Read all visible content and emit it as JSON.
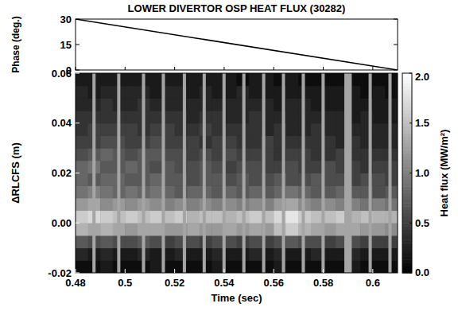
{
  "chart_data": [
    {
      "type": "line",
      "title": "LOWER DIVERTOR OSP HEAT FLUX (30282)",
      "y_label": "Phase (deg.)",
      "x": [
        0.48,
        0.61
      ],
      "values": [
        30,
        0
      ],
      "color": "#000000",
      "xlim": [
        0.48,
        0.61
      ],
      "xticks": [
        0.48,
        0.5,
        0.52,
        0.54,
        0.56,
        0.58,
        0.6
      ],
      "ylim": [
        0,
        30
      ],
      "yticks": [
        0,
        15,
        30
      ],
      "tick_labels": "y"
    },
    {
      "type": "heatmap",
      "x_label": "Time (sec)",
      "y_label": "ΔRLCFS (m)",
      "colorbar_label": "Heat flux (MW/m²)",
      "xlim": [
        0.48,
        0.61
      ],
      "xticks": [
        0.48,
        0.5,
        0.52,
        0.54,
        0.56,
        0.58,
        0.6
      ],
      "ylim": [
        -0.02,
        0.06
      ],
      "yticks": [
        {
          "value": -0.02,
          "label": "-0.02"
        },
        {
          "value": 0,
          "label": "0.00"
        },
        {
          "value": 0.02,
          "label": "0.02"
        },
        {
          "value": 0.04,
          "label": "0.04"
        },
        {
          "value": 0.06,
          "label": "0.06"
        }
      ],
      "colorbar_lim": [
        0,
        2
      ],
      "colorbar_ticks": [
        {
          "value": 0,
          "label": "0.0"
        },
        {
          "value": 0.5,
          "label": "0.5"
        },
        {
          "value": 1,
          "label": "1.0"
        },
        {
          "value": 1.5,
          "label": "1.5"
        },
        {
          "value": 2,
          "label": "2.0"
        }
      ],
      "x_edges": [
        0.48,
        0.485,
        0.49,
        0.495,
        0.5,
        0.505,
        0.51,
        0.515,
        0.52,
        0.525,
        0.53,
        0.535,
        0.54,
        0.545,
        0.55,
        0.555,
        0.56,
        0.565,
        0.57,
        0.575,
        0.58,
        0.585,
        0.59,
        0.595,
        0.6,
        0.605,
        0.61
      ],
      "y_edges": [
        -0.02,
        -0.015,
        -0.01,
        -0.005,
        0,
        0.005,
        0.01,
        0.015,
        0.02,
        0.025,
        0.03,
        0.035,
        0.04,
        0.045,
        0.05,
        0.055,
        0.06
      ],
      "cells": [
        [
          0.1,
          0.1,
          0.2,
          0.1,
          0.1,
          0.1,
          0.2,
          0.1,
          0.1,
          0.1,
          0.1,
          0.2,
          0.1,
          0.1,
          0.1,
          0.1,
          0.2,
          0.1,
          0.1,
          0.1,
          0.1,
          0.1,
          0.2,
          0.1,
          0.1,
          0.1
        ],
        [
          0.3,
          0.2,
          0.3,
          0.2,
          0.2,
          0.3,
          0.2,
          0.2,
          0.3,
          0.2,
          0.2,
          0.3,
          0.2,
          0.2,
          0.3,
          0.2,
          0.3,
          0.2,
          0.2,
          0.3,
          0.2,
          0.2,
          0.3,
          0.2,
          0.2,
          0.2
        ],
        [
          0.7,
          0.6,
          0.7,
          0.6,
          0.6,
          0.7,
          0.6,
          0.5,
          0.6,
          0.6,
          0.5,
          0.6,
          0.6,
          0.5,
          0.6,
          0.5,
          0.6,
          0.7,
          0.6,
          0.6,
          0.5,
          0.6,
          0.6,
          0.5,
          0.5,
          0.5
        ],
        [
          1.4,
          1.3,
          1.4,
          1.3,
          1.2,
          1.3,
          1.3,
          1.2,
          1.2,
          1.3,
          1.2,
          1.2,
          1.3,
          1.2,
          1.3,
          1.2,
          1.5,
          1.6,
          1.4,
          1.3,
          1.2,
          1.3,
          1.3,
          1.2,
          1.2,
          1.1
        ],
        [
          1.6,
          1.7,
          1.6,
          1.5,
          1.6,
          1.5,
          1.6,
          1.5,
          1.6,
          1.4,
          1.5,
          1.5,
          1.4,
          1.5,
          1.6,
          1.5,
          1.7,
          1.8,
          1.6,
          1.5,
          1.5,
          1.6,
          1.4,
          1.5,
          1.4,
          1.4
        ],
        [
          1.2,
          1.3,
          1.1,
          1.2,
          1.1,
          1.2,
          1.1,
          1.0,
          1.1,
          1.0,
          1.1,
          1.0,
          1.1,
          1.0,
          1.1,
          1.0,
          1.2,
          1.3,
          1.1,
          1.0,
          1.1,
          1.0,
          1.0,
          0.9,
          1.0,
          0.9
        ],
        [
          0.9,
          1.0,
          0.9,
          0.8,
          0.9,
          0.8,
          0.9,
          0.8,
          0.7,
          0.8,
          0.8,
          0.7,
          0.8,
          0.7,
          0.8,
          0.7,
          0.8,
          0.9,
          0.8,
          0.7,
          0.7,
          0.8,
          0.7,
          0.7,
          0.6,
          0.7
        ],
        [
          0.8,
          0.7,
          0.8,
          0.8,
          0.7,
          0.7,
          0.8,
          0.7,
          0.7,
          0.6,
          0.7,
          0.7,
          0.6,
          0.7,
          0.6,
          0.6,
          0.7,
          0.6,
          0.6,
          0.7,
          0.6,
          0.6,
          0.5,
          0.6,
          0.6,
          0.5
        ],
        [
          0.8,
          0.9,
          0.7,
          0.7,
          0.8,
          0.7,
          0.6,
          0.7,
          0.6,
          0.6,
          0.7,
          0.6,
          0.5,
          0.6,
          0.6,
          0.5,
          0.5,
          0.6,
          0.5,
          0.5,
          0.6,
          0.5,
          0.5,
          0.4,
          0.5,
          0.5
        ],
        [
          0.6,
          0.7,
          0.8,
          0.7,
          0.6,
          0.7,
          0.7,
          0.6,
          0.6,
          0.5,
          0.6,
          0.5,
          0.6,
          0.5,
          0.5,
          0.5,
          0.4,
          0.5,
          0.5,
          0.4,
          0.4,
          0.5,
          0.4,
          0.4,
          0.4,
          0.4
        ],
        [
          0.5,
          0.5,
          0.6,
          0.6,
          0.5,
          0.5,
          0.6,
          0.5,
          0.5,
          0.5,
          0.4,
          0.5,
          0.5,
          0.4,
          0.4,
          0.5,
          0.4,
          0.4,
          0.4,
          0.4,
          0.4,
          0.3,
          0.4,
          0.3,
          0.3,
          0.3
        ],
        [
          0.4,
          0.5,
          0.5,
          0.5,
          0.5,
          0.4,
          0.5,
          0.5,
          0.4,
          0.4,
          0.5,
          0.4,
          0.4,
          0.4,
          0.4,
          0.3,
          0.4,
          0.3,
          0.3,
          0.4,
          0.3,
          0.3,
          0.3,
          0.3,
          0.3,
          0.3
        ],
        [
          0.4,
          0.4,
          0.4,
          0.4,
          0.4,
          0.4,
          0.4,
          0.4,
          0.4,
          0.3,
          0.4,
          0.4,
          0.3,
          0.3,
          0.4,
          0.3,
          0.3,
          0.3,
          0.3,
          0.3,
          0.3,
          0.3,
          0.2,
          0.3,
          0.2,
          0.2
        ],
        [
          0.3,
          0.3,
          0.4,
          0.3,
          0.3,
          0.4,
          0.3,
          0.3,
          0.3,
          0.3,
          0.3,
          0.3,
          0.3,
          0.3,
          0.3,
          0.3,
          0.2,
          0.3,
          0.3,
          0.2,
          0.2,
          0.2,
          0.2,
          0.2,
          0.2,
          0.2
        ],
        [
          0.3,
          0.2,
          0.3,
          0.3,
          0.3,
          0.3,
          0.2,
          0.3,
          0.3,
          0.2,
          0.3,
          0.2,
          0.2,
          0.3,
          0.2,
          0.2,
          0.2,
          0.2,
          0.2,
          0.2,
          0.2,
          0.2,
          0.2,
          0.1,
          0.2,
          0.1
        ],
        [
          0.2,
          0.2,
          0.2,
          0.2,
          0.2,
          0.2,
          0.2,
          0.2,
          0.2,
          0.2,
          0.2,
          0.2,
          0.2,
          0.1,
          0.2,
          0.2,
          0.1,
          0.2,
          0.1,
          0.1,
          0.1,
          0.1,
          0.1,
          0.1,
          0.1,
          0.1
        ]
      ],
      "gaps": [
        [
          0.4868,
          0.4881
        ],
        [
          0.4968,
          0.4981
        ],
        [
          0.5068,
          0.5081
        ],
        [
          0.5148,
          0.5161
        ],
        [
          0.5233,
          0.5246
        ],
        [
          0.5313,
          0.5326
        ],
        [
          0.5393,
          0.5406
        ],
        [
          0.5473,
          0.5486
        ],
        [
          0.5553,
          0.5566
        ],
        [
          0.5633,
          0.5646
        ],
        [
          0.5713,
          0.5726
        ],
        [
          0.5793,
          0.5806
        ],
        [
          0.5885,
          0.5915
        ],
        [
          0.5983,
          0.5996
        ],
        [
          0.6063,
          0.6076
        ]
      ],
      "tick_labels": true
    }
  ]
}
